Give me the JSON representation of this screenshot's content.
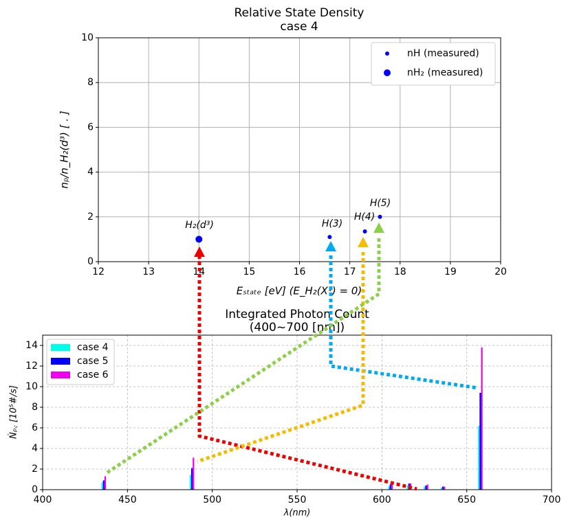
{
  "chart_data": [
    {
      "type": "scatter",
      "title": "Relative State Density",
      "subtitle": "case 4",
      "x_label": "Eₛₜₐₜₑ   [eV]   (E_H₂(X¹) = 0)",
      "y_label": "nₚ/n_H₂(d³)   [ . ]",
      "xlim": [
        12,
        20
      ],
      "xticks": [
        12,
        13,
        14,
        15,
        16,
        17,
        18,
        19,
        20
      ],
      "ylim": [
        0,
        10
      ],
      "yticks": [
        0,
        2,
        4,
        6,
        8,
        10
      ],
      "grid": true,
      "legend": "upper right",
      "series": [
        {
          "name": "nH (measured)",
          "color": "#0000ff",
          "x": [
            16.6,
            17.3,
            17.6
          ],
          "values": [
            1.1,
            1.35,
            2.0
          ]
        },
        {
          "name": "nH₂ (measured)",
          "color": "#0000ff",
          "x": [
            14.0
          ],
          "values": [
            1.0
          ]
        }
      ],
      "annotations": [
        "H₂(d³)",
        "H(3)",
        "H(4)",
        "H(5)"
      ]
    },
    {
      "type": "bar",
      "title": "Integrated Photon Count",
      "subtitle": "(400~700 [nm])",
      "x_label": "λ(nm)",
      "y_label": "Ṅₚ꜀   [10⁵#/s]",
      "xlim": [
        400,
        700
      ],
      "xticks": [
        400,
        450,
        500,
        550,
        600,
        650,
        700
      ],
      "ylim": [
        0,
        15
      ],
      "yticks": [
        0,
        2,
        4,
        6,
        8,
        10,
        12,
        14
      ],
      "grid": true,
      "legend": "upper left",
      "x": [
        436,
        488,
        605,
        616,
        626,
        636,
        658
      ],
      "series": [
        {
          "name": "case 4",
          "color": "#00ffe8",
          "values": [
            0.7,
            1.4,
            0.3,
            0.4,
            0.3,
            0.2,
            6.2
          ]
        },
        {
          "name": "case 5",
          "color": "#0000ff",
          "values": [
            0.9,
            2.1,
            0.5,
            0.6,
            0.4,
            0.3,
            9.4
          ]
        },
        {
          "name": "case 6",
          "color": "#ee00ee",
          "values": [
            1.3,
            3.1,
            0.6,
            0.6,
            0.5,
            0.3,
            13.8
          ]
        }
      ]
    }
  ]
}
